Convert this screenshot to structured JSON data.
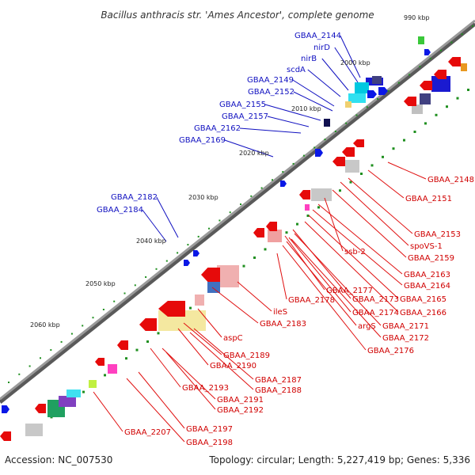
{
  "title": "Bacillus anthracis str. 'Ames Ancestor', complete genome",
  "footer": {
    "accession": "Accession: NC_007530",
    "summary": "Topology: circular; Length: 5,227,419 bp; Genes: 5,336"
  },
  "kbp_ticks": [
    "990 kbp",
    "2000 kbp",
    "2010 kbp",
    "2020 kbp",
    "2030 kbp",
    "2040 kbp",
    "2050 kbp",
    "2060 kbp"
  ],
  "labels_blue": [
    "GBAA_2144",
    "nirD",
    "nirB",
    "scdA",
    "GBAA_2149",
    "GBAA_2152",
    "GBAA_2155",
    "GBAA_2157",
    "GBAA_2162",
    "GBAA_2169",
    "GBAA_2182",
    "GBAA_2184"
  ],
  "labels_red": [
    "GBAA_2148",
    "GBAA_2151",
    "GBAA_2153",
    "spoVS-1",
    "GBAA_2159",
    "ssb-2",
    "GBAA_2163",
    "GBAA_2164",
    "GBAA_2165",
    "GBAA_2166",
    "GBAA_2177",
    "GBAA_2173",
    "GBAA_2174",
    "GBAA_2171",
    "GBAA_2172",
    "argS",
    "GBAA_2176",
    "ileS",
    "GBAA_2178",
    "GBAA_2183",
    "aspC",
    "GBAA_2189",
    "GBAA_2190",
    "GBAA_2187",
    "GBAA_2188",
    "GBAA_2193",
    "GBAA_2191",
    "GBAA_2192",
    "GBAA_2197",
    "GBAA_2198",
    "GBAA_2207"
  ],
  "colors": {
    "backbone": "#8c8c8c",
    "forward_gene": "#0a18e6",
    "reverse_gene": "#e60a0a",
    "blue_label": "#1010c0",
    "red_label": "#d00000",
    "dots": "#1f8f1f"
  }
}
